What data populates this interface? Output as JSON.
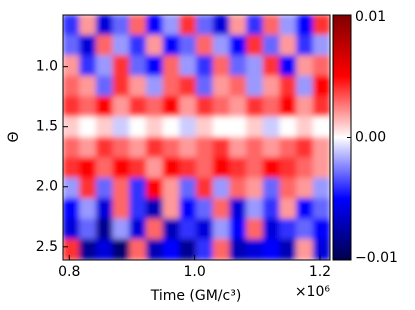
{
  "chart_data": {
    "type": "heatmap",
    "xlabel": "Time (GM/c³)",
    "ylabel": "Θ",
    "x_offset_label": "×10⁶",
    "xlim": [
      0.79,
      1.216
    ],
    "xticks": [
      0.8,
      {
        "value": 1.0,
        "label": "1.0"
      },
      1.2
    ],
    "ylim": [
      0.57,
      2.61
    ],
    "yticks": [
      {
        "value": 1.0,
        "label": "1.0"
      },
      1.5,
      {
        "value": 2.0,
        "label": "2.0"
      },
      2.5
    ],
    "y_inverted": true,
    "colormap": "seismic",
    "zlim": [
      -0.01,
      0.01
    ],
    "colorbar_ticks": [
      {
        "value": 0.01,
        "label": "0.01"
      },
      {
        "value": 0.0,
        "label": "0.00"
      },
      {
        "value": -0.01,
        "label": "−0.01"
      }
    ],
    "z": [
      [
        -0.004,
        0.002,
        -0.006,
        -0.003,
        0.003,
        -0.005,
        -0.002,
        0.004,
        -0.003,
        -0.006,
        0.002,
        -0.004,
        0.003,
        -0.002,
        -0.005,
        0.004
      ],
      [
        -0.003,
        -0.006,
        0.003,
        -0.002,
        -0.004,
        0.002,
        -0.005,
        -0.003,
        0.003,
        -0.002,
        -0.005,
        0.004,
        -0.003,
        0.002,
        -0.004,
        -0.002
      ],
      [
        0.002,
        -0.004,
        -0.002,
        0.004,
        -0.003,
        -0.005,
        0.003,
        -0.002,
        -0.004,
        0.003,
        -0.003,
        -0.002,
        0.004,
        -0.005,
        0.002,
        0.003
      ],
      [
        0.003,
        0.002,
        -0.003,
        0.004,
        0.002,
        -0.002,
        0.003,
        0.004,
        -0.003,
        0.002,
        0.003,
        -0.002,
        0.002,
        0.004,
        -0.002,
        0.005
      ],
      [
        0.004,
        0.003,
        0.005,
        0.002,
        0.004,
        0.003,
        0.005,
        0.002,
        0.004,
        0.003,
        0.002,
        0.004,
        0.003,
        0.005,
        0.002,
        0.004
      ],
      [
        0.001,
        0.0,
        0.001,
        -0.001,
        0.0,
        0.001,
        0.0,
        -0.001,
        0.001,
        0.0,
        0.0,
        0.001,
        -0.001,
        0.0,
        0.001,
        0.0
      ],
      [
        0.003,
        0.002,
        0.004,
        0.003,
        0.002,
        0.004,
        0.003,
        0.002,
        0.003,
        0.004,
        0.002,
        0.003,
        0.002,
        0.003,
        0.004,
        0.002
      ],
      [
        0.004,
        0.005,
        0.003,
        0.005,
        0.004,
        0.002,
        0.005,
        0.004,
        0.003,
        0.005,
        0.004,
        0.003,
        0.005,
        0.004,
        0.003,
        0.002
      ],
      [
        -0.002,
        0.004,
        -0.003,
        0.003,
        -0.004,
        0.005,
        0.002,
        -0.003,
        0.004,
        -0.002,
        0.003,
        0.002,
        -0.003,
        0.003,
        0.002,
        -0.002
      ],
      [
        -0.005,
        -0.002,
        -0.006,
        0.003,
        -0.004,
        -0.007,
        0.002,
        -0.005,
        -0.003,
        0.003,
        -0.006,
        -0.002,
        -0.004,
        0.002,
        -0.005,
        -0.003
      ],
      [
        -0.006,
        -0.003,
        -0.008,
        -0.002,
        -0.006,
        0.003,
        -0.007,
        -0.004,
        -0.006,
        -0.002,
        -0.005,
        0.003,
        -0.006,
        -0.004,
        -0.003,
        -0.005
      ],
      [
        0.004,
        -0.008,
        -0.006,
        -0.009,
        0.003,
        -0.007,
        -0.005,
        -0.008,
        -0.004,
        0.003,
        -0.007,
        -0.006,
        -0.005,
        -0.007,
        0.002,
        -0.006
      ]
    ]
  }
}
